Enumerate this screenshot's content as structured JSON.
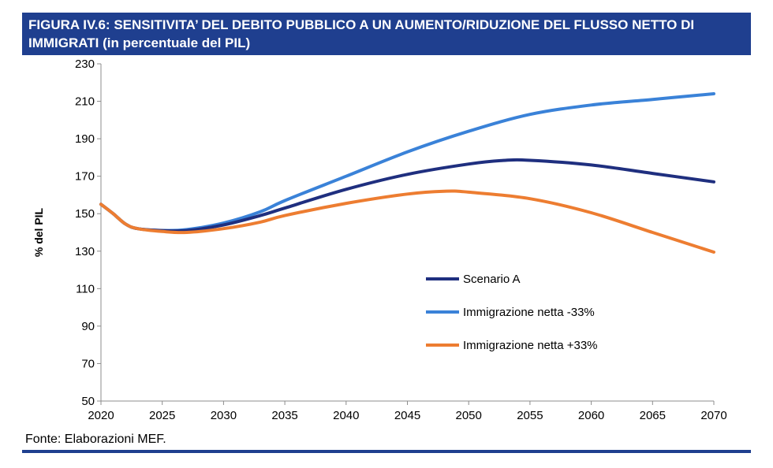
{
  "title": {
    "line1": "FIGURA IV.6: SENSITIVITA’ DEL DEBITO PUBBLICO A UN AUMENTO/RIDUZIONE DEL FLUSSO NETTO DI",
    "line2": "IMMIGRATI (in percentuale del PIL)"
  },
  "source": "Fonte: Elaborazioni MEF.",
  "colors": {
    "title_bg": "#1f3f8f",
    "scenario_a": "#1f2f7f",
    "minus33": "#3a82d8",
    "plus33": "#ed7d31"
  },
  "chart_data": {
    "type": "line",
    "title": "",
    "xlabel": "",
    "ylabel": "% del PIL",
    "xlim": [
      2020,
      2070
    ],
    "ylim": [
      50,
      230
    ],
    "x_ticks": [
      2020,
      2025,
      2030,
      2035,
      2040,
      2045,
      2050,
      2055,
      2060,
      2065,
      2070
    ],
    "y_ticks": [
      50,
      70,
      90,
      110,
      130,
      150,
      170,
      190,
      210,
      230
    ],
    "grid": false,
    "legend_position": "center-right",
    "series": [
      {
        "name": "Scenario A",
        "color": "#1f2f7f",
        "x": [
          2020,
          2021,
          2022,
          2023,
          2025,
          2027,
          2030,
          2033,
          2035,
          2040,
          2045,
          2050,
          2053,
          2055,
          2060,
          2065,
          2070
        ],
        "y": [
          155,
          150,
          144.5,
          142,
          141,
          141,
          144,
          149,
          153,
          163,
          171,
          176.5,
          178.5,
          178.5,
          176,
          171.5,
          167
        ]
      },
      {
        "name": "Immigrazione netta -33%",
        "color": "#3a82d8",
        "x": [
          2020,
          2021,
          2022,
          2023,
          2025,
          2027,
          2030,
          2033,
          2035,
          2040,
          2045,
          2050,
          2055,
          2060,
          2065,
          2070
        ],
        "y": [
          155,
          150,
          144.5,
          142,
          141,
          141.5,
          145,
          151,
          157,
          170,
          183,
          194,
          203,
          208,
          211,
          214
        ]
      },
      {
        "name": "Immigrazione netta +33%",
        "color": "#ed7d31",
        "x": [
          2020,
          2021,
          2022,
          2023,
          2025,
          2027,
          2030,
          2033,
          2035,
          2040,
          2045,
          2048,
          2050,
          2055,
          2060,
          2065,
          2070
        ],
        "y": [
          155,
          150,
          144.5,
          142,
          140.5,
          140,
          142,
          145.5,
          149,
          155.5,
          160.5,
          162,
          161.5,
          158,
          150.5,
          140,
          129.5
        ]
      }
    ]
  }
}
